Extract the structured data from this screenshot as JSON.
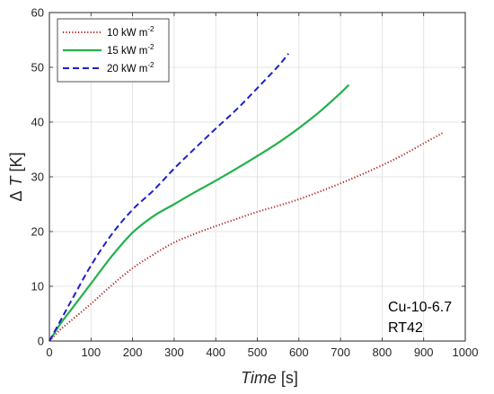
{
  "chart_data": {
    "type": "line",
    "xlabel": {
      "italic": "Time",
      "unit": " [s]"
    },
    "ylabel": {
      "symbol": "Δ",
      "italic": " T",
      "unit": " [K]"
    },
    "xlim": [
      0,
      1000
    ],
    "ylim": [
      0,
      60
    ],
    "xticks": [
      0,
      100,
      200,
      300,
      400,
      500,
      600,
      700,
      800,
      900,
      1000
    ],
    "yticks": [
      0,
      10,
      20,
      30,
      40,
      50,
      60
    ],
    "grid": true,
    "legend_position": "top-left",
    "annotations": [
      "Cu-10-6.7",
      "RT42"
    ],
    "series": [
      {
        "name": "10 kW m-2",
        "legend_main": "10 kW m",
        "legend_sup": "-2",
        "color": "#b22222",
        "style": "dotted",
        "x": [
          0,
          25,
          50,
          100,
          150,
          200,
          250,
          300,
          350,
          400,
          450,
          500,
          550,
          600,
          650,
          700,
          750,
          800,
          850,
          900,
          945
        ],
        "y": [
          0,
          2,
          3.6,
          6.8,
          10.2,
          13.3,
          15.8,
          18,
          19.6,
          21,
          22.3,
          23.6,
          24.7,
          25.9,
          27.3,
          28.8,
          30.4,
          32.1,
          34,
          36.1,
          38
        ]
      },
      {
        "name": "15 kW m-2",
        "legend_main": "15 kW m",
        "legend_sup": "-2",
        "color": "#22b14c",
        "style": "solid",
        "x": [
          0,
          25,
          50,
          100,
          150,
          200,
          250,
          300,
          350,
          400,
          450,
          500,
          550,
          600,
          650,
          700,
          720
        ],
        "y": [
          0,
          3,
          5.5,
          10.5,
          15.5,
          19.8,
          22.8,
          25,
          27.2,
          29.3,
          31.5,
          33.8,
          36.2,
          38.9,
          41.9,
          45.3,
          46.8
        ]
      },
      {
        "name": "20 kW m-2",
        "legend_main": "20 kW m",
        "legend_sup": "-2",
        "color": "#1f1fcc",
        "style": "dashed",
        "x": [
          0,
          25,
          50,
          100,
          150,
          200,
          250,
          300,
          350,
          400,
          450,
          500,
          550,
          575
        ],
        "y": [
          0,
          3.5,
          7,
          13.8,
          19.5,
          24,
          27.5,
          31.5,
          35.2,
          38.8,
          42.3,
          46.2,
          50.2,
          52.5
        ]
      }
    ]
  }
}
